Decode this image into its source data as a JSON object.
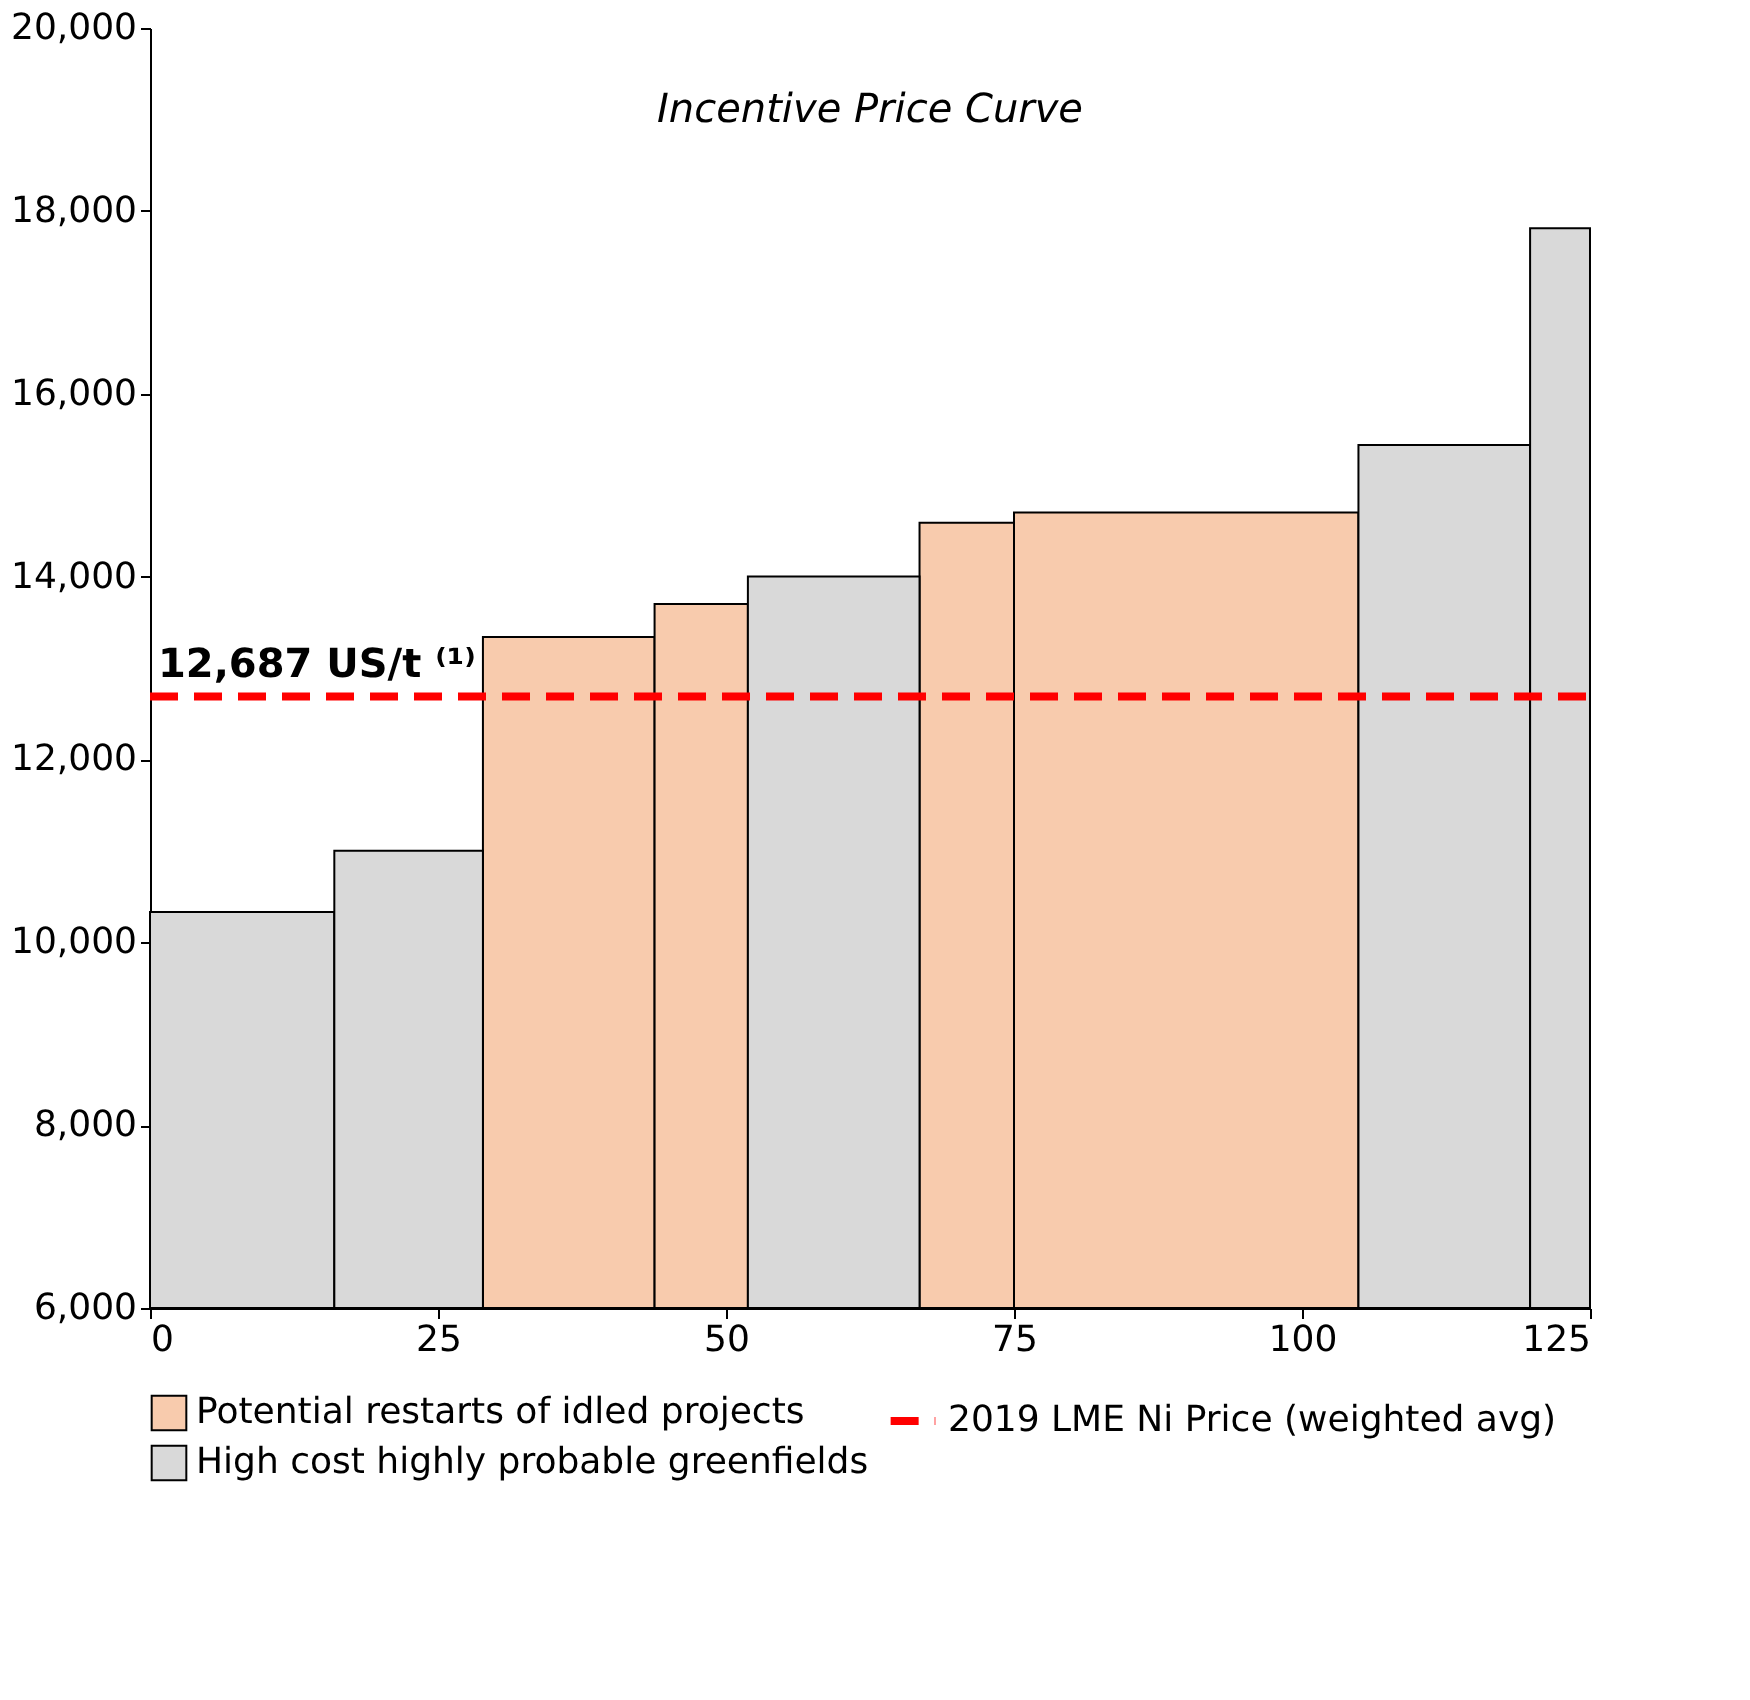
{
  "chart_data": {
    "type": "histogram",
    "title": "Incentive Price Curve",
    "bins": [
      0,
      16,
      28.9,
      43.8,
      51.9,
      66.8,
      75,
      104.9,
      119.8,
      125
    ],
    "series": [
      {
        "name": "Potential restarts of idled projects",
        "color": "#f8cbad",
        "values": [
          null,
          null,
          13340,
          13700,
          null,
          14590,
          14700,
          null,
          null
        ]
      },
      {
        "name": "High cost highly probable greenfields",
        "color": "#d9d9d9",
        "values": [
          10330,
          11000,
          null,
          null,
          14000,
          null,
          null,
          15440,
          17810
        ]
      },
      {
        "name": "2019 LME Ni Price (weighted avg)",
        "type": "line",
        "color": "#ff0000",
        "line_style": "dashed",
        "x": [
          0,
          125
        ],
        "values": [
          12687,
          12687
        ]
      }
    ],
    "annotations": [
      {
        "text": "12,687 US/t ⁽¹⁾",
        "x": 0,
        "y": 12687
      }
    ],
    "xlim": [
      0,
      125
    ],
    "xticks": [
      0,
      25,
      50,
      75,
      100,
      125
    ],
    "ylim": [
      6000,
      20000
    ],
    "yticks": [
      {
        "value": 6000,
        "label": "6,000"
      },
      {
        "value": 8000,
        "label": "8,000"
      },
      {
        "value": 10000,
        "label": "10,000"
      },
      {
        "value": 12000,
        "label": "12,000"
      },
      {
        "value": 14000,
        "label": "14,000"
      },
      {
        "value": 16000,
        "label": "16,000"
      },
      {
        "value": 18000,
        "label": "18,000"
      },
      {
        "value": 20000,
        "label": "20,000"
      }
    ],
    "grid": false,
    "legend": "bottom"
  }
}
